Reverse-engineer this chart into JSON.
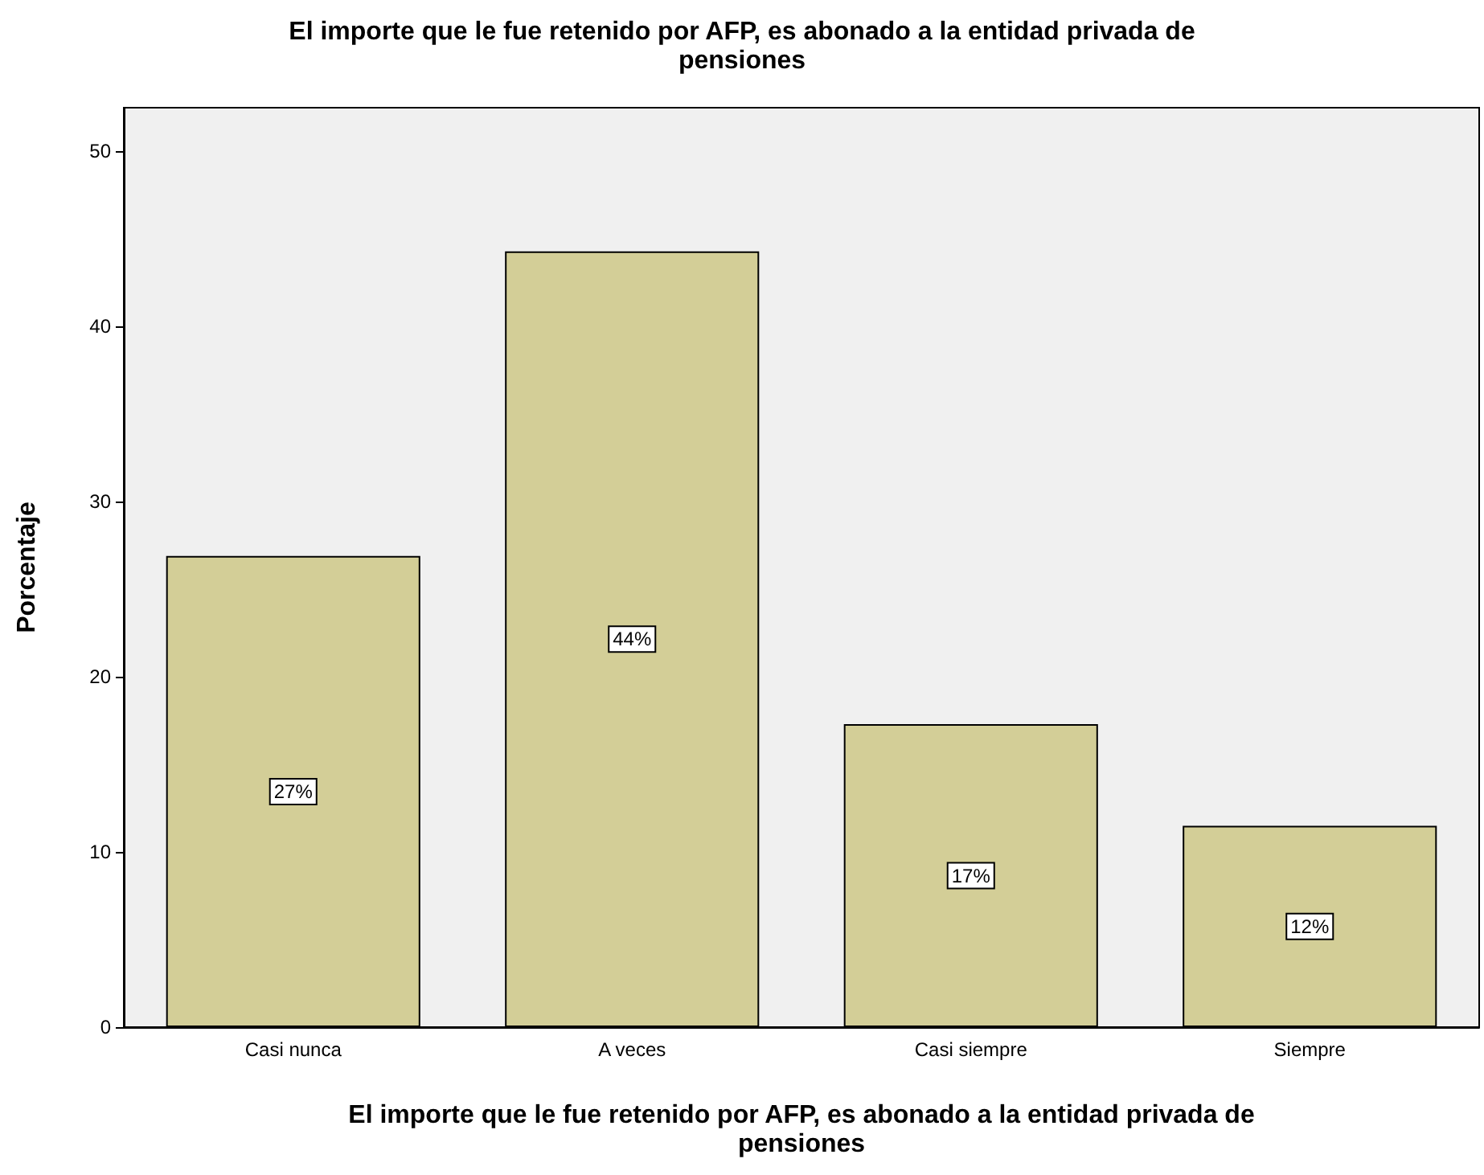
{
  "chart_data": {
    "type": "bar",
    "title": "El importe que le fue retenido por AFP, es abonado a la entidad privada de pensiones",
    "xlabel": "El importe que le fue retenido por AFP, es abonado a la entidad privada de pensiones",
    "ylabel": "Porcentaje",
    "categories": [
      "Casi nunca",
      "A veces",
      "Casi siempre",
      "Siempre"
    ],
    "values": [
      26.9,
      44.3,
      17.3,
      11.5
    ],
    "value_labels": [
      "27%",
      "44%",
      "17%",
      "12%"
    ],
    "color": "#d3ce97",
    "ylim": [
      0,
      52.5
    ],
    "yticks": [
      0,
      10,
      20,
      30,
      40,
      50
    ],
    "grid": false
  }
}
